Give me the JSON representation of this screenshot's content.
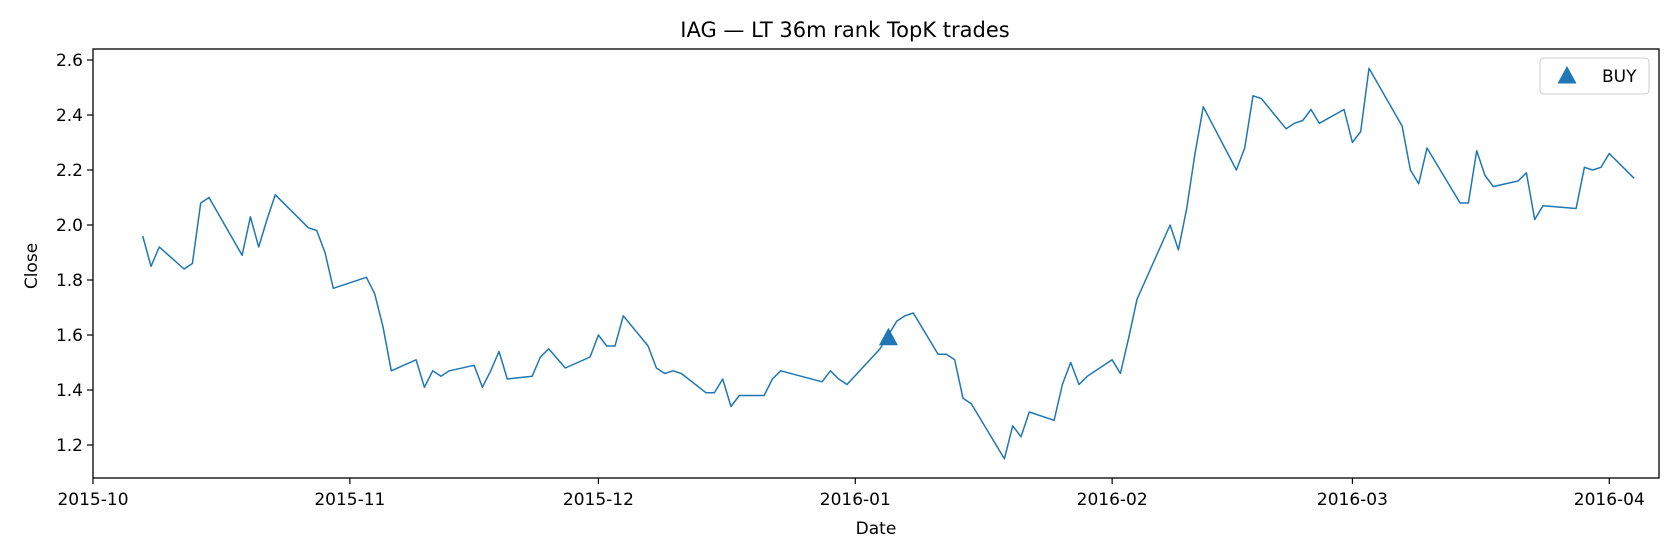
{
  "chart_data": {
    "type": "line",
    "title": "IAG — LT 36m rank TopK trades",
    "xlabel": "Date",
    "ylabel": "Close",
    "xlim": [
      "2015-10-01",
      "2016-04-07"
    ],
    "ylim": [
      1.08,
      2.64
    ],
    "x_ticks": [
      "2015-10-01",
      "2015-11-01",
      "2015-12-01",
      "2016-01-01",
      "2016-02-01",
      "2016-03-01",
      "2016-04-01"
    ],
    "x_tick_labels": [
      "2015-10",
      "2015-11",
      "2015-12",
      "2016-01",
      "2016-02",
      "2016-03",
      "2016-04"
    ],
    "y_ticks": [
      1.2,
      1.4,
      1.6,
      1.8,
      2.0,
      2.2,
      2.4,
      2.6
    ],
    "y_tick_labels": [
      "1.2",
      "1.4",
      "1.6",
      "1.8",
      "2.0",
      "2.2",
      "2.4",
      "2.6"
    ],
    "grid": false,
    "line_color": "#1f77b4",
    "series": [
      {
        "x": [
          "2015-10-07",
          "2015-10-08",
          "2015-10-09",
          "2015-10-12",
          "2015-10-13",
          "2015-10-14",
          "2015-10-15",
          "2015-10-19",
          "2015-10-20",
          "2015-10-21",
          "2015-10-22",
          "2015-10-23",
          "2015-10-27",
          "2015-10-28",
          "2015-10-29",
          "2015-10-30",
          "2015-11-03",
          "2015-11-04",
          "2015-11-05",
          "2015-11-06",
          "2015-11-09",
          "2015-11-10",
          "2015-11-11",
          "2015-11-12",
          "2015-11-13",
          "2015-11-16",
          "2015-11-17",
          "2015-11-18",
          "2015-11-19",
          "2015-11-20",
          "2015-11-23",
          "2015-11-24",
          "2015-11-25",
          "2015-11-27",
          "2015-11-30",
          "2015-12-01",
          "2015-12-02",
          "2015-12-03",
          "2015-12-04",
          "2015-12-07",
          "2015-12-08",
          "2015-12-09",
          "2015-12-10",
          "2015-12-11",
          "2015-12-14",
          "2015-12-15",
          "2015-12-16",
          "2015-12-17",
          "2015-12-18",
          "2015-12-21",
          "2015-12-22",
          "2015-12-23",
          "2015-12-28",
          "2015-12-29",
          "2015-12-30",
          "2015-12-31",
          "2016-01-04",
          "2016-01-05",
          "2016-01-06",
          "2016-01-07",
          "2016-01-08",
          "2016-01-11",
          "2016-01-12",
          "2016-01-13",
          "2016-01-14",
          "2016-01-15",
          "2016-01-19",
          "2016-01-20",
          "2016-01-21",
          "2016-01-22",
          "2016-01-25",
          "2016-01-26",
          "2016-01-27",
          "2016-01-28",
          "2016-01-29",
          "2016-02-01",
          "2016-02-02",
          "2016-02-03",
          "2016-02-04",
          "2016-02-08",
          "2016-02-09",
          "2016-02-10",
          "2016-02-11",
          "2016-02-12",
          "2016-02-16",
          "2016-02-17",
          "2016-02-18",
          "2016-02-19",
          "2016-02-22",
          "2016-02-23",
          "2016-02-24",
          "2016-02-25",
          "2016-02-26",
          "2016-02-29",
          "2016-03-01",
          "2016-03-02",
          "2016-03-03",
          "2016-03-07",
          "2016-03-08",
          "2016-03-09",
          "2016-03-10",
          "2016-03-14",
          "2016-03-15",
          "2016-03-16",
          "2016-03-17",
          "2016-03-18",
          "2016-03-21",
          "2016-03-22",
          "2016-03-23",
          "2016-03-24",
          "2016-03-28",
          "2016-03-29",
          "2016-03-30",
          "2016-03-31",
          "2016-04-01",
          "2016-04-04"
        ],
        "y": [
          1.96,
          1.85,
          1.92,
          1.84,
          1.86,
          2.08,
          2.1,
          1.89,
          2.03,
          1.92,
          2.02,
          2.11,
          1.99,
          1.98,
          1.9,
          1.77,
          1.81,
          1.75,
          1.63,
          1.47,
          1.51,
          1.41,
          1.47,
          1.45,
          1.47,
          1.49,
          1.41,
          1.47,
          1.54,
          1.44,
          1.45,
          1.52,
          1.55,
          1.48,
          1.52,
          1.6,
          1.56,
          1.56,
          1.67,
          1.56,
          1.48,
          1.46,
          1.47,
          1.46,
          1.39,
          1.39,
          1.44,
          1.34,
          1.38,
          1.38,
          1.44,
          1.47,
          1.43,
          1.47,
          1.44,
          1.42,
          1.55,
          1.6,
          1.65,
          1.67,
          1.68,
          1.53,
          1.53,
          1.51,
          1.37,
          1.35,
          1.15,
          1.27,
          1.23,
          1.32,
          1.29,
          1.42,
          1.5,
          1.42,
          1.45,
          1.51,
          1.46,
          1.59,
          1.73,
          2.0,
          1.91,
          2.06,
          2.26,
          2.43,
          2.2,
          2.28,
          2.47,
          2.46,
          2.35,
          2.37,
          2.38,
          2.42,
          2.37,
          2.42,
          2.3,
          2.34,
          2.57,
          2.36,
          2.2,
          2.15,
          2.28,
          2.08,
          2.08,
          2.27,
          2.18,
          2.14,
          2.16,
          2.19,
          2.02,
          2.07,
          2.06,
          2.21,
          2.2,
          2.21,
          2.26,
          2.17
        ]
      }
    ],
    "markers": [
      {
        "label": "BUY",
        "x": "2016-01-05",
        "y": 1.59,
        "shape": "triangle-up",
        "color": "#1f77b4"
      }
    ],
    "legend": {
      "position": "top-right",
      "entries": [
        {
          "label": "BUY",
          "shape": "triangle-up",
          "color": "#1f77b4"
        }
      ]
    }
  }
}
